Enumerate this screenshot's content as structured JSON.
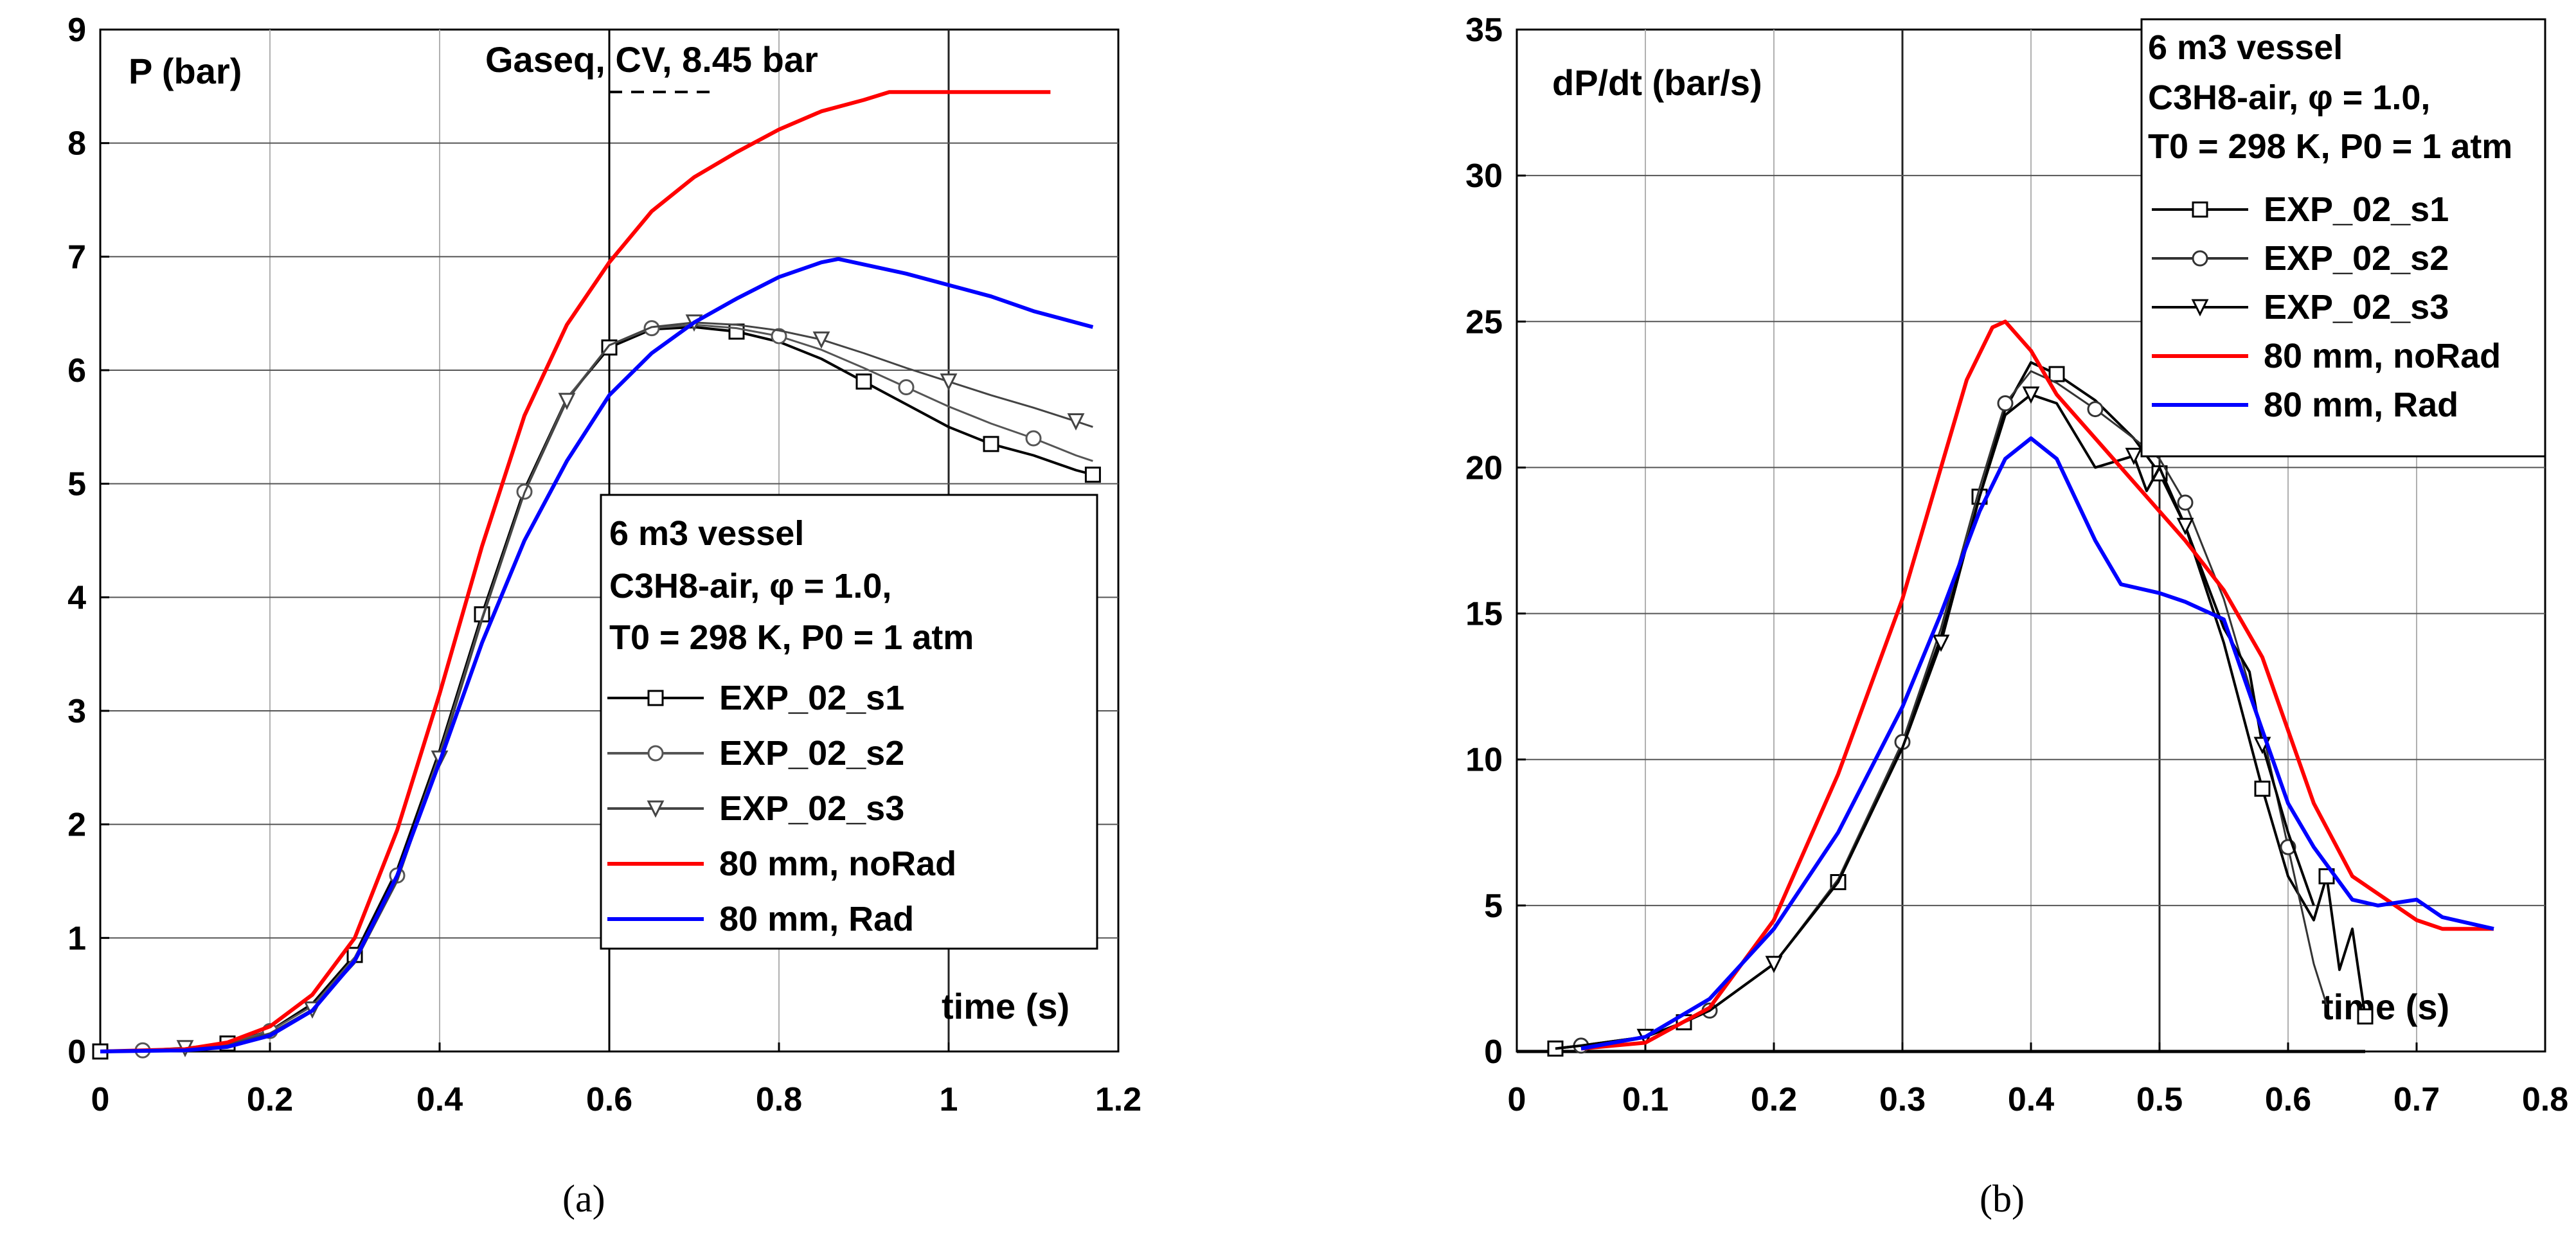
{
  "chart_data": [
    {
      "panel": "a",
      "type": "line",
      "caption": "(a)",
      "ylabel": "P (bar)",
      "xlabel": "time (s)",
      "xlim": [
        0,
        1.2
      ],
      "ylim": [
        0,
        9
      ],
      "x_ticks": [
        "0",
        "0.2",
        "0.4",
        "0.6",
        "0.8",
        "1",
        "1.2"
      ],
      "y_ticks": [
        "0",
        "1",
        "2",
        "3",
        "4",
        "5",
        "6",
        "7",
        "8",
        "9"
      ],
      "grid": "on",
      "annotation": {
        "text": "Gaseq, CV, 8.45 bar",
        "value": 8.45
      },
      "reference_line_x": 0.6,
      "legend": {
        "position": "center-right",
        "title": "6 m3 vessel",
        "mixture": "C3H8-air, φ = 1.0,",
        "conditions": "T0 = 298 K, P0 = 1 atm",
        "entries": [
          "EXP_02_s1",
          "EXP_02_s2",
          "EXP_02_s3",
          "80 mm, noRad",
          "80 mm, Rad"
        ]
      },
      "series": [
        {
          "name": "EXP_02_s1",
          "color": "#000000",
          "marker": "square",
          "x": [
            0,
            0.05,
            0.1,
            0.15,
            0.2,
            0.25,
            0.3,
            0.35,
            0.4,
            0.45,
            0.5,
            0.55,
            0.6,
            0.65,
            0.7,
            0.75,
            0.8,
            0.85,
            0.9,
            0.95,
            1.0,
            1.05,
            1.1,
            1.15,
            1.17
          ],
          "y": [
            0,
            0.01,
            0.03,
            0.07,
            0.18,
            0.42,
            0.85,
            1.6,
            2.65,
            3.85,
            4.95,
            5.75,
            6.2,
            6.36,
            6.38,
            6.34,
            6.25,
            6.1,
            5.9,
            5.7,
            5.5,
            5.35,
            5.25,
            5.12,
            5.08
          ]
        },
        {
          "name": "EXP_02_s2",
          "color": "#555555",
          "marker": "circle",
          "x": [
            0,
            0.05,
            0.1,
            0.15,
            0.2,
            0.25,
            0.3,
            0.35,
            0.4,
            0.45,
            0.5,
            0.55,
            0.6,
            0.65,
            0.7,
            0.75,
            0.8,
            0.85,
            0.9,
            0.95,
            1.0,
            1.05,
            1.1,
            1.15,
            1.17
          ],
          "y": [
            0,
            0.01,
            0.03,
            0.07,
            0.18,
            0.4,
            0.83,
            1.55,
            2.62,
            3.82,
            4.93,
            5.75,
            6.22,
            6.37,
            6.4,
            6.37,
            6.3,
            6.18,
            6.02,
            5.85,
            5.68,
            5.53,
            5.4,
            5.25,
            5.2
          ]
        },
        {
          "name": "EXP_02_s3",
          "color": "#444444",
          "marker": "triangle-down",
          "x": [
            0,
            0.05,
            0.1,
            0.15,
            0.2,
            0.25,
            0.3,
            0.35,
            0.4,
            0.45,
            0.5,
            0.55,
            0.6,
            0.65,
            0.7,
            0.75,
            0.8,
            0.85,
            0.9,
            0.95,
            1.0,
            1.05,
            1.1,
            1.15,
            1.17
          ],
          "y": [
            0,
            0.01,
            0.03,
            0.06,
            0.16,
            0.37,
            0.78,
            1.5,
            2.58,
            3.8,
            4.92,
            5.73,
            6.22,
            6.38,
            6.42,
            6.4,
            6.35,
            6.27,
            6.15,
            6.02,
            5.9,
            5.78,
            5.67,
            5.55,
            5.5
          ]
        },
        {
          "name": "80 mm, noRad",
          "color": "#ff0000",
          "marker": "none",
          "x": [
            0,
            0.1,
            0.15,
            0.2,
            0.25,
            0.3,
            0.35,
            0.4,
            0.45,
            0.5,
            0.55,
            0.6,
            0.65,
            0.7,
            0.75,
            0.8,
            0.85,
            0.9,
            0.93,
            1.0,
            1.05,
            1.1,
            1.12
          ],
          "y": [
            0,
            0.02,
            0.08,
            0.22,
            0.5,
            1.0,
            1.95,
            3.15,
            4.45,
            5.6,
            6.4,
            6.95,
            7.4,
            7.7,
            7.92,
            8.12,
            8.28,
            8.38,
            8.45,
            8.45,
            8.45,
            8.45,
            8.45
          ]
        },
        {
          "name": "80 mm, Rad",
          "color": "#0000ff",
          "marker": "none",
          "x": [
            0,
            0.1,
            0.15,
            0.2,
            0.25,
            0.3,
            0.35,
            0.4,
            0.45,
            0.5,
            0.55,
            0.6,
            0.65,
            0.7,
            0.75,
            0.8,
            0.85,
            0.87,
            0.95,
            1.0,
            1.05,
            1.1,
            1.17
          ],
          "y": [
            0,
            0.01,
            0.04,
            0.14,
            0.36,
            0.8,
            1.55,
            2.55,
            3.6,
            4.5,
            5.2,
            5.78,
            6.15,
            6.42,
            6.63,
            6.82,
            6.95,
            6.98,
            6.85,
            6.75,
            6.65,
            6.52,
            6.38
          ]
        }
      ]
    },
    {
      "panel": "b",
      "type": "line",
      "caption": "(b)",
      "ylabel": "dP/dt (bar/s)",
      "xlabel": "time (s)",
      "xlim": [
        0,
        0.8
      ],
      "ylim": [
        0,
        35
      ],
      "x_ticks": [
        "0",
        "0.1",
        "0.2",
        "0.3",
        "0.4",
        "0.5",
        "0.6",
        "0.7",
        "0.8"
      ],
      "y_ticks": [
        "0",
        "5",
        "10",
        "15",
        "20",
        "25",
        "30",
        "35"
      ],
      "grid": "on",
      "legend": {
        "position": "top-right",
        "title": "6 m3 vessel",
        "mixture": "C3H8-air, φ = 1.0,",
        "conditions": "T0 = 298 K, P0 = 1 atm",
        "entries": [
          "EXP_02_s1",
          "EXP_02_s2",
          "EXP_02_s3",
          "80 mm, noRad",
          "80 mm, Rad"
        ]
      },
      "series": [
        {
          "name": "EXP_02_s1",
          "color": "#000000",
          "marker": "square",
          "x": [
            0.03,
            0.05,
            0.1,
            0.13,
            0.15,
            0.2,
            0.25,
            0.3,
            0.33,
            0.36,
            0.38,
            0.4,
            0.42,
            0.45,
            0.48,
            0.5,
            0.52,
            0.55,
            0.58,
            0.6,
            0.62,
            0.63,
            0.64,
            0.65,
            0.66
          ],
          "y": [
            0.1,
            0.2,
            0.5,
            1.0,
            1.4,
            3.0,
            5.8,
            10.5,
            14.2,
            19.0,
            22.0,
            23.6,
            23.2,
            22.3,
            21.0,
            19.8,
            18.0,
            14.0,
            9.0,
            6.0,
            4.5,
            6.0,
            2.8,
            4.2,
            1.2
          ]
        },
        {
          "name": "EXP_02_s2",
          "color": "#333333",
          "marker": "circle",
          "x": [
            0.03,
            0.05,
            0.1,
            0.13,
            0.15,
            0.2,
            0.25,
            0.3,
            0.33,
            0.36,
            0.38,
            0.4,
            0.42,
            0.45,
            0.48,
            0.5,
            0.52,
            0.55,
            0.58,
            0.6,
            0.62,
            0.63
          ],
          "y": [
            0.1,
            0.2,
            0.5,
            1.0,
            1.4,
            3.0,
            5.9,
            10.6,
            14.5,
            19.3,
            22.2,
            23.3,
            22.9,
            22.0,
            21.0,
            20.3,
            18.8,
            15.5,
            11.0,
            7.0,
            3.0,
            1.6
          ]
        },
        {
          "name": "EXP_02_s3",
          "color": "#000000",
          "marker": "triangle-down",
          "x": [
            0.03,
            0.05,
            0.1,
            0.13,
            0.15,
            0.2,
            0.25,
            0.3,
            0.33,
            0.36,
            0.38,
            0.4,
            0.42,
            0.45,
            0.48,
            0.49,
            0.5,
            0.52,
            0.55,
            0.57,
            0.58,
            0.6,
            0.62
          ],
          "y": [
            0.1,
            0.2,
            0.5,
            1.0,
            1.4,
            3.0,
            5.8,
            10.4,
            14.0,
            19.0,
            21.8,
            22.5,
            22.2,
            20.0,
            20.4,
            19.2,
            20.0,
            18.0,
            14.5,
            13.0,
            10.5,
            7.5,
            5.0
          ]
        },
        {
          "name": "80 mm, noRad",
          "color": "#ff0000",
          "marker": "none",
          "x": [
            0.05,
            0.1,
            0.15,
            0.2,
            0.25,
            0.3,
            0.33,
            0.35,
            0.37,
            0.38,
            0.4,
            0.42,
            0.45,
            0.48,
            0.5,
            0.52,
            0.55,
            0.58,
            0.6,
            0.62,
            0.65,
            0.7,
            0.72,
            0.76
          ],
          "y": [
            0.1,
            0.3,
            1.5,
            4.5,
            9.5,
            15.5,
            20.0,
            23.0,
            24.8,
            25.0,
            24.0,
            22.5,
            21.0,
            19.5,
            18.5,
            17.5,
            15.8,
            13.5,
            11.0,
            8.5,
            6.0,
            4.5,
            4.2,
            4.2
          ]
        },
        {
          "name": "80 mm, Rad",
          "color": "#0000ff",
          "marker": "none",
          "x": [
            0.05,
            0.1,
            0.15,
            0.2,
            0.25,
            0.3,
            0.33,
            0.36,
            0.38,
            0.4,
            0.42,
            0.45,
            0.47,
            0.5,
            0.52,
            0.55,
            0.58,
            0.6,
            0.62,
            0.65,
            0.67,
            0.7,
            0.72,
            0.76
          ],
          "y": [
            0.1,
            0.5,
            1.8,
            4.2,
            7.5,
            11.8,
            15.0,
            18.5,
            20.3,
            21.0,
            20.3,
            17.5,
            16.0,
            15.7,
            15.4,
            14.8,
            11.0,
            8.5,
            7.0,
            5.2,
            5.0,
            5.2,
            4.6,
            4.2
          ]
        }
      ]
    }
  ]
}
